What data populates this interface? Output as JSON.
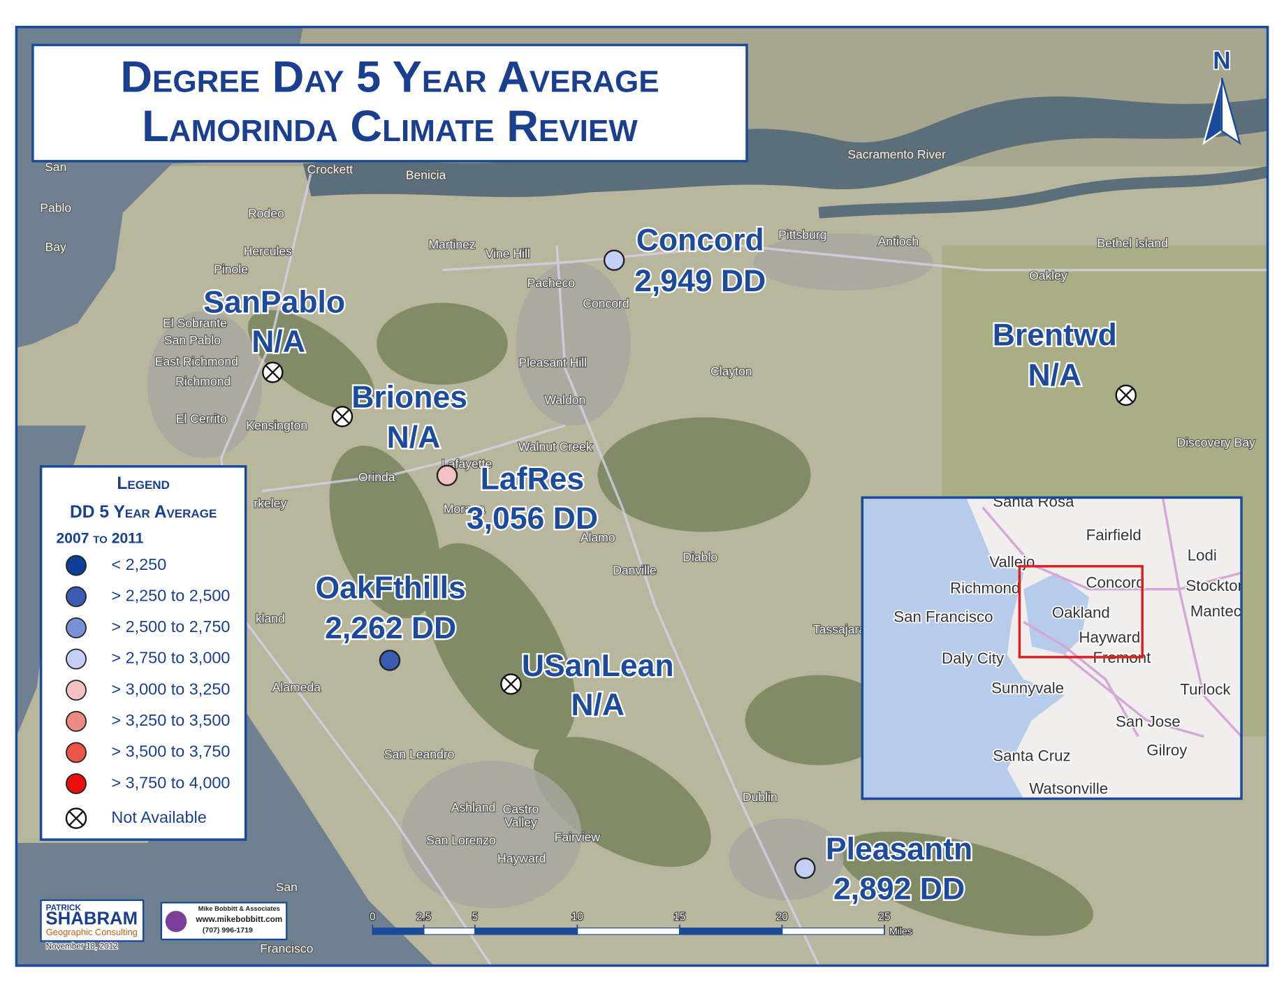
{
  "title": {
    "line1": "Degree Day 5 Year Average",
    "line2": "Lamorinda Climate Review"
  },
  "north": "N",
  "stations": [
    {
      "name": "SanPablo",
      "label": "N/A"
    },
    {
      "name": "Briones",
      "label": "N/A"
    },
    {
      "name": "LafRes",
      "value": 3056,
      "label": "3,056 DD",
      "color": "#f4c2c2"
    },
    {
      "name": "Concord",
      "value": 2949,
      "label": "2,949 DD",
      "color": "#c3cff5"
    },
    {
      "name": "Brentwd",
      "label": "N/A"
    },
    {
      "name": "OakFthills",
      "value": 2262,
      "label": "2,262 DD",
      "color": "#3b5bb0"
    },
    {
      "name": "USanLean",
      "label": "N/A"
    },
    {
      "name": "Pleasantn",
      "value": 2892,
      "label": "2,892 DD",
      "color": "#c3cff5"
    }
  ],
  "legend": {
    "title": "Legend",
    "subtitle": "DD 5 Year Average",
    "period": "2007 to 2011",
    "classes": [
      {
        "label": "< 2,250",
        "color": "#0d3f99"
      },
      {
        "label": "> 2,250 to 2,500",
        "color": "#3b5bb0"
      },
      {
        "label": "> 2,500 to 2,750",
        "color": "#7890d8"
      },
      {
        "label": "> 2,750 to 3,000",
        "color": "#c3cff5"
      },
      {
        "label": "> 3,000 to 3,250",
        "color": "#f4c2c2"
      },
      {
        "label": "> 3,250 to 3,500",
        "color": "#ee8a84"
      },
      {
        "label": "> 3,500 to 3,750",
        "color": "#ee5548"
      },
      {
        "label": "> 3,750 to 4,000",
        "color": "#e80f0f"
      }
    ],
    "na": "Not Available"
  },
  "inset": {
    "places": [
      "Santa Rosa",
      "Fairfield",
      "Vallejo",
      "Lodi",
      "Richmond",
      "Concord",
      "Stockton",
      "San Francisco",
      "Oakland",
      "Manteca",
      "Hayward",
      "Fremont",
      "Daly City",
      "Sunnyvale",
      "Turlock",
      "San Jose",
      "Gilroy",
      "Santa Cruz",
      "Watsonville"
    ]
  },
  "scale_bar": {
    "ticks": [
      0,
      2.5,
      5,
      10,
      15,
      20,
      25
    ],
    "xlim": [
      0,
      25
    ],
    "unit": "Miles"
  },
  "credits": {
    "firm1_line1": "Patrick",
    "firm1_line2": "SHABRAM",
    "firm1_line3": "Geographic Consulting",
    "date": "November 18, 2012",
    "firm2_name": "Mike Bobbitt & Associates",
    "firm2_web": "www.mikebobbitt.com",
    "firm2_phone": "(707) 996-1719"
  },
  "places": [
    "Benicia",
    "Crockett",
    "Rodeo",
    "Hercules",
    "Pinole",
    "Martinez",
    "Vine Hill",
    "Pacheco",
    "Concord",
    "Pittsburg",
    "Antioch",
    "Oakley",
    "El Sobrante",
    "San Pablo",
    "East Richmond",
    "Richmond",
    "El Cerrito",
    "Kensington",
    "Pleasant Hill",
    "Clayton",
    "Waldon",
    "Walnut Creek",
    "Lafayette",
    "Orinda",
    "Moraga",
    "Alamo",
    "Danville",
    "Diablo",
    "rkeley",
    "kland",
    "Alameda",
    "San Leandro",
    "Tassajara",
    "Dublin",
    "Castro",
    "Valley",
    "Ashland",
    "San Lorenzo",
    "Hayward",
    "Fairview",
    "Discovery Bay",
    "Bethel Island",
    "Sacramento River",
    "San",
    "Pablo",
    "Bay",
    "San",
    "Francisco"
  ]
}
